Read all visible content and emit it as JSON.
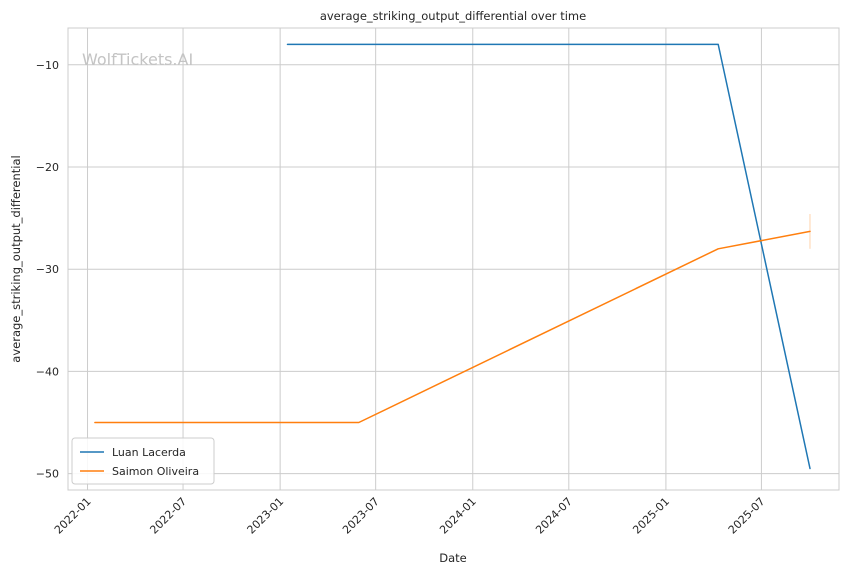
{
  "chart_data": {
    "type": "line",
    "title": "average_striking_output_differential over time",
    "xlabel": "Date",
    "ylabel": "average_striking_output_differential",
    "watermark": "WolfTickets.AI",
    "x_ticks": [
      "2022-01",
      "2022-07",
      "2023-01",
      "2023-07",
      "2024-01",
      "2024-07",
      "2025-01",
      "2025-07"
    ],
    "y_ticks": [
      -10,
      -20,
      -30,
      -40,
      -50
    ],
    "y_tick_labels": [
      "−10",
      "−20",
      "−30",
      "−40",
      "−50"
    ],
    "xlim": [
      "2021-11-25",
      "2025-11-25"
    ],
    "ylim": [
      -51.6,
      -6.4
    ],
    "grid": true,
    "legend_position": "lower-left",
    "series": [
      {
        "name": "Luan Lacerda",
        "color": "#1f77b4",
        "points": [
          {
            "x": "2023-01-15",
            "y": -8
          },
          {
            "x": "2025-04-10",
            "y": -8
          },
          {
            "x": "2025-10-01",
            "y": -49.5
          }
        ]
      },
      {
        "name": "Saimon Oliveira",
        "color": "#ff7f0e",
        "points": [
          {
            "x": "2022-01-15",
            "y": -45
          },
          {
            "x": "2023-05-30",
            "y": -45
          },
          {
            "x": "2025-04-10",
            "y": -28
          },
          {
            "x": "2025-10-01",
            "y": -26.3
          }
        ],
        "error_bar_at_last": [
          -24.6,
          -28.0
        ]
      }
    ]
  }
}
